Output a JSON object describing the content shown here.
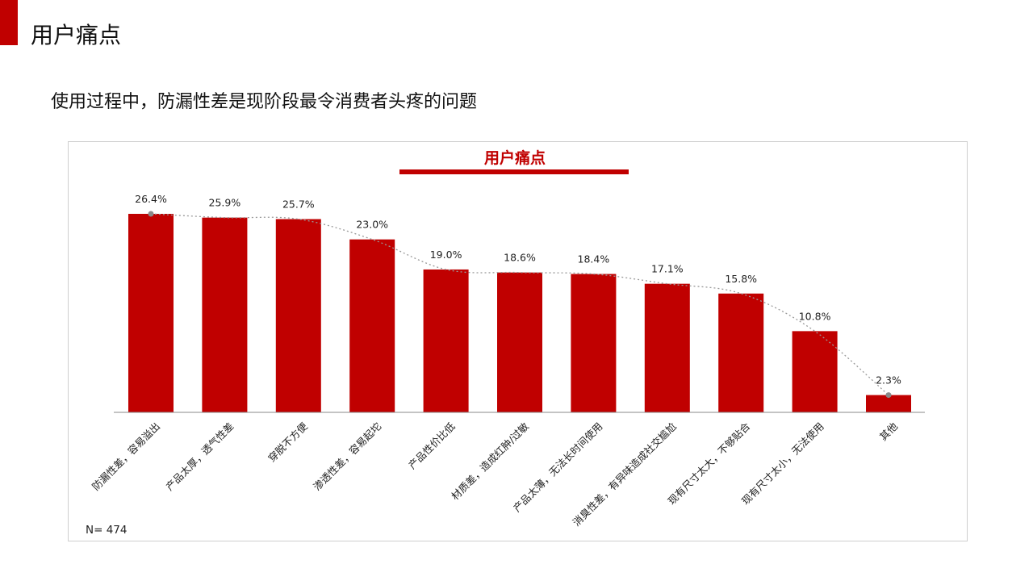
{
  "header": {
    "title": "用户痛点",
    "subtitle": "使用过程中，防漏性差是现阶段最令消费者头疼的问题"
  },
  "colors": {
    "accent": "#c00000",
    "bar": "#c00000",
    "trend": "#999999"
  },
  "chart_data": {
    "type": "bar",
    "title": "用户痛点",
    "note": "N= 474",
    "categories": [
      "防漏性差，容易溢出",
      "产品太厚，透气性差",
      "穿脱不方便",
      "渗透性差，容易起坨",
      "产品性价比低",
      "材质差，造成红肿/过敏",
      "产品太薄，无法长时间使用",
      "消臭性差，有异味造成社交尴尬",
      "现有尺寸太大，不够贴合",
      "现有尺寸太小，无法使用",
      "其他"
    ],
    "values": [
      26.4,
      25.9,
      25.7,
      23.0,
      19.0,
      18.6,
      18.4,
      17.1,
      15.8,
      10.8,
      2.3
    ],
    "value_labels": [
      "26.4%",
      "25.9%",
      "25.7%",
      "23.0%",
      "19.0%",
      "18.6%",
      "18.4%",
      "17.1%",
      "15.8%",
      "10.8%",
      "2.3%"
    ],
    "ylim": [
      0,
      30
    ],
    "grid": false,
    "trendline": "smooth dotted line through bar tops"
  }
}
